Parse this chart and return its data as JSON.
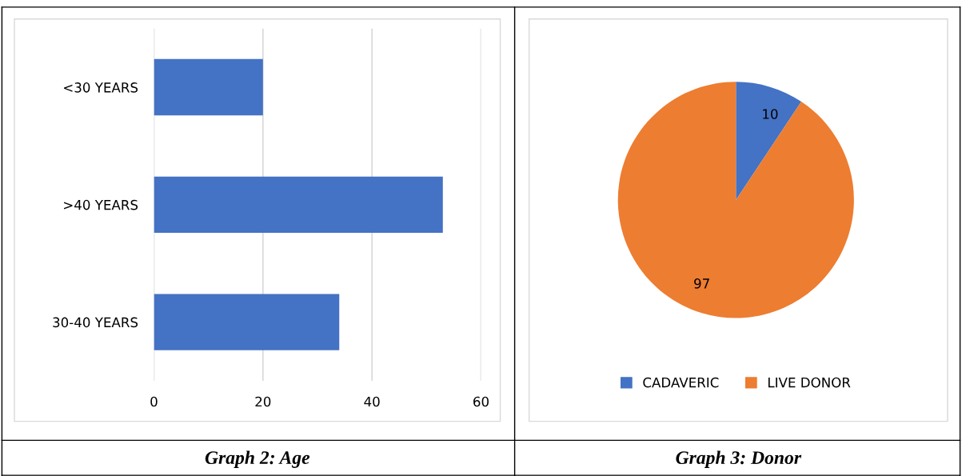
{
  "chart_data": [
    {
      "type": "bar",
      "orientation": "horizontal",
      "title": "Graph 2: Age",
      "categories": [
        "<30 YEARS",
        ">40 YEARS",
        "30-40 YEARS"
      ],
      "values": [
        20,
        53,
        34
      ],
      "color": "#4472c4",
      "xlim": [
        0,
        60
      ],
      "xticks": [
        0,
        20,
        40,
        60
      ],
      "grid": "x"
    },
    {
      "type": "pie",
      "title": "Graph 3: Donor",
      "categories": [
        "CADAVERIC",
        "LIVE DONOR"
      ],
      "values": [
        10,
        97
      ],
      "colors": [
        "#4472c4",
        "#ed7d31"
      ],
      "data_labels": true,
      "legend": "bottom"
    }
  ]
}
